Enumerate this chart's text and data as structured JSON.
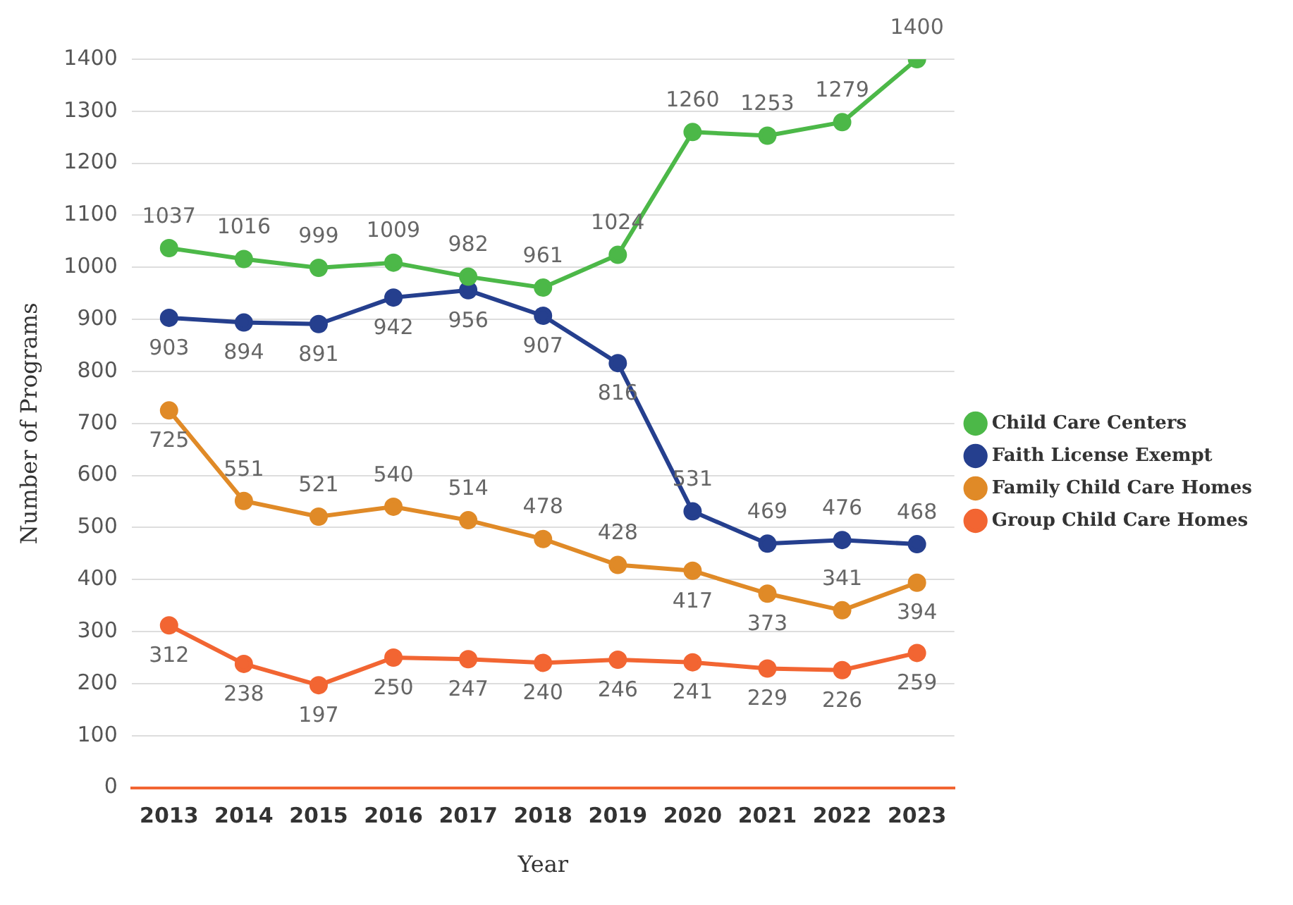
{
  "chart_data": {
    "type": "line",
    "xlabel": "Year",
    "ylabel": "Number of Programs",
    "categories": [
      "2013",
      "2014",
      "2015",
      "2016",
      "2017",
      "2018",
      "2019",
      "2020",
      "2021",
      "2022",
      "2023"
    ],
    "series": [
      {
        "name": "Child Care Centers",
        "color": "#4cb848",
        "values": [
          1037,
          1016,
          999,
          1009,
          982,
          961,
          1024,
          1260,
          1253,
          1279,
          1400
        ]
      },
      {
        "name": "Faith License Exempt",
        "color": "#253f8e",
        "values": [
          903,
          894,
          891,
          942,
          956,
          907,
          816,
          531,
          469,
          476,
          468
        ]
      },
      {
        "name": "Family Child Care Homes",
        "color": "#e08a27",
        "values": [
          725,
          551,
          521,
          540,
          514,
          478,
          428,
          417,
          373,
          341,
          394
        ]
      },
      {
        "name": "Group Child Care Homes",
        "color": "#f26532",
        "values": [
          312,
          238,
          197,
          250,
          247,
          240,
          246,
          241,
          229,
          226,
          259
        ]
      }
    ],
    "ylim": [
      0,
      1400
    ],
    "yticks": [
      0,
      100,
      200,
      300,
      400,
      500,
      600,
      700,
      800,
      900,
      1000,
      1100,
      1200,
      1300,
      1400
    ],
    "grid": "y",
    "legend": "right",
    "marker": "circle",
    "line_style": "solid",
    "data_labels": true
  }
}
